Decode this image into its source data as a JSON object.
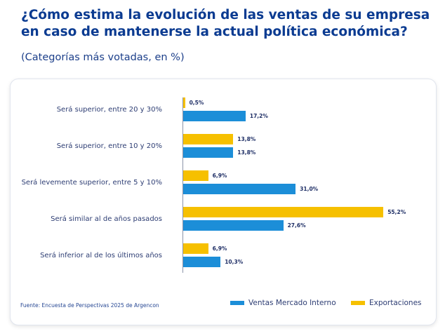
{
  "header": {
    "title": "¿Cómo estima la evolución de las ventas de su empresa en caso de mantenerse la actual política económica?",
    "subtitle": "(Categorías más votadas, en %)"
  },
  "chart_data": {
    "type": "bar",
    "orientation": "horizontal",
    "categories": [
      "Será superior, entre 20 y 30%",
      "Será superior, entre 10 y 20%",
      "Será levemente superior, entre 5 y 10%",
      "Será similar al de años pasados",
      "Será inferior al de los últimos años"
    ],
    "series": [
      {
        "name": "Exportaciones",
        "color": "#f6c000",
        "values": [
          0.5,
          13.8,
          6.9,
          55.2,
          6.9
        ],
        "labels": [
          "0,5%",
          "13,8%",
          "6,9%",
          "55,2%",
          "6,9%"
        ]
      },
      {
        "name": "Ventas Mercado Interno",
        "color": "#1c8ed8",
        "values": [
          17.2,
          13.8,
          31.0,
          27.6,
          10.3
        ],
        "labels": [
          "17,2%",
          "13,8%",
          "31,0%",
          "27,6%",
          "10,3%"
        ]
      }
    ],
    "xlim": [
      0,
      60
    ],
    "legend_position": "bottom-right"
  },
  "footer": {
    "source": "Fuente: Encuesta de Perspectivas 2025 de Argencon"
  }
}
